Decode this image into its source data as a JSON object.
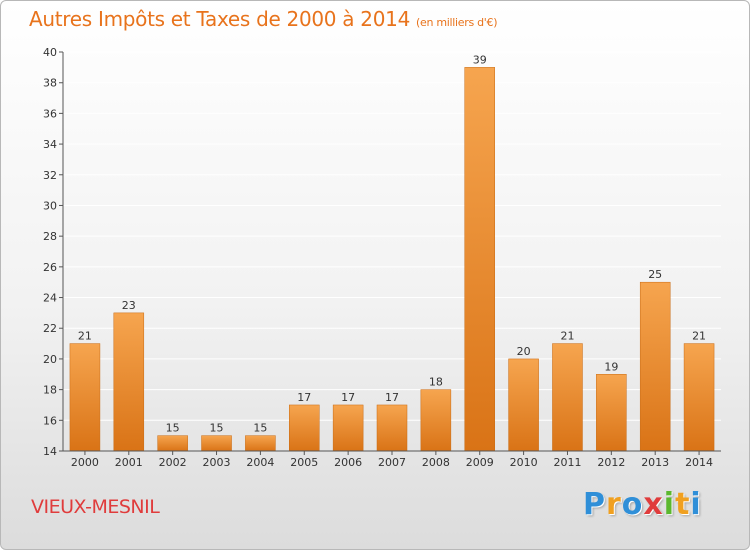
{
  "title": "Autres Impôts et Taxes de 2000 à 2014",
  "subtitle": "(en milliers d'€)",
  "commune": "VIEUX-MESNIL",
  "logo": {
    "letters": [
      "P",
      "r",
      "o",
      "x",
      "i",
      "t",
      "i"
    ],
    "colors": [
      "#2f8fd8",
      "#f0a020",
      "#2f8fd8",
      "#e03c3c",
      "#5bb82e",
      "#f0a020",
      "#2f8fd8"
    ]
  },
  "colors": {
    "bar_top": "#f6a54f",
    "bar_bottom": "#d97316",
    "axis": "#555555",
    "grid": "#ffffff",
    "title": "#e8731c"
  },
  "chart_data": {
    "type": "bar",
    "categories": [
      "2000",
      "2001",
      "2002",
      "2003",
      "2004",
      "2005",
      "2006",
      "2007",
      "2008",
      "2009",
      "2010",
      "2011",
      "2012",
      "2013",
      "2014"
    ],
    "values": [
      21,
      23,
      15,
      15,
      15,
      17,
      17,
      17,
      18,
      39,
      20,
      21,
      19,
      25,
      21
    ],
    "title": "Autres Impôts et Taxes de 2000 à 2014",
    "subtitle": "(en milliers d'€)",
    "xlabel": "",
    "ylabel": "",
    "ylim": [
      14,
      40
    ],
    "yticks": [
      14,
      16,
      18,
      20,
      22,
      24,
      26,
      28,
      30,
      32,
      34,
      36,
      38,
      40
    ],
    "grid": true,
    "legend": "none"
  }
}
